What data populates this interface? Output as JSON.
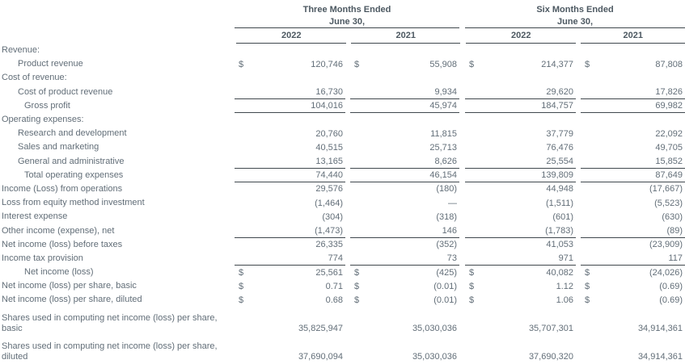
{
  "currency": "$",
  "header": {
    "groups": [
      {
        "title": "Three Months Ended",
        "subtitle": "June 30,",
        "years": [
          "2022",
          "2021"
        ]
      },
      {
        "title": "Six Months Ended",
        "subtitle": "June 30,",
        "years": [
          "2022",
          "2021"
        ]
      }
    ]
  },
  "rows": [
    {
      "label": "Revenue:",
      "values": [
        "",
        "",
        "",
        ""
      ]
    },
    {
      "label": "Product revenue",
      "values": [
        "120,746",
        "55,908",
        "214,377",
        "87,808"
      ]
    },
    {
      "label": "Cost of revenue:",
      "values": [
        "",
        "",
        "",
        ""
      ]
    },
    {
      "label": "Cost of product revenue",
      "values": [
        "16,730",
        "9,934",
        "29,620",
        "17,826"
      ]
    },
    {
      "label": "Gross profit",
      "values": [
        "104,016",
        "45,974",
        "184,757",
        "69,982"
      ]
    },
    {
      "label": "Operating expenses:",
      "values": [
        "",
        "",
        "",
        ""
      ]
    },
    {
      "label": "Research and development",
      "values": [
        "20,760",
        "11,815",
        "37,779",
        "22,092"
      ]
    },
    {
      "label": "Sales and marketing",
      "values": [
        "40,515",
        "25,713",
        "76,476",
        "49,705"
      ]
    },
    {
      "label": "General and administrative",
      "values": [
        "13,165",
        "8,626",
        "25,554",
        "15,852"
      ]
    },
    {
      "label": "Total operating expenses",
      "values": [
        "74,440",
        "46,154",
        "139,809",
        "87,649"
      ]
    },
    {
      "label": "Income (Loss) from operations",
      "values": [
        "29,576",
        "(180)",
        "44,948",
        "(17,667)"
      ]
    },
    {
      "label": "Loss from equity method investment",
      "values": [
        "(1,464)",
        "—",
        "(1,511)",
        "(5,523)"
      ]
    },
    {
      "label": "Interest expense",
      "values": [
        "(304)",
        "(318)",
        "(601)",
        "(630)"
      ]
    },
    {
      "label": "Other income (expense), net",
      "values": [
        "(1,473)",
        "146",
        "(1,783)",
        "(89)"
      ]
    },
    {
      "label": "Net income (loss) before taxes",
      "values": [
        "26,335",
        "(352)",
        "41,053",
        "(23,909)"
      ]
    },
    {
      "label": "Income tax provision",
      "values": [
        "774",
        "73",
        "971",
        "117"
      ]
    },
    {
      "label": "Net income (loss)",
      "values": [
        "25,561",
        "(425)",
        "40,082",
        "(24,026)"
      ]
    },
    {
      "label": "Net income (loss) per share, basic",
      "values": [
        "0.71",
        "(0.01)",
        "1.12",
        "(0.69)"
      ]
    },
    {
      "label": "Net income (loss) per share, diluted",
      "values": [
        "0.68",
        "(0.01)",
        "1.06",
        "(0.69)"
      ]
    },
    {
      "label": "Shares used in computing net income (loss) per share, basic",
      "values": [
        "35,825,947",
        "35,030,036",
        "35,707,301",
        "34,914,361"
      ]
    },
    {
      "label": "Shares used in computing net income (loss) per share, diluted",
      "values": [
        "37,690,094",
        "35,030,036",
        "37,690,320",
        "34,914,361"
      ]
    }
  ]
}
